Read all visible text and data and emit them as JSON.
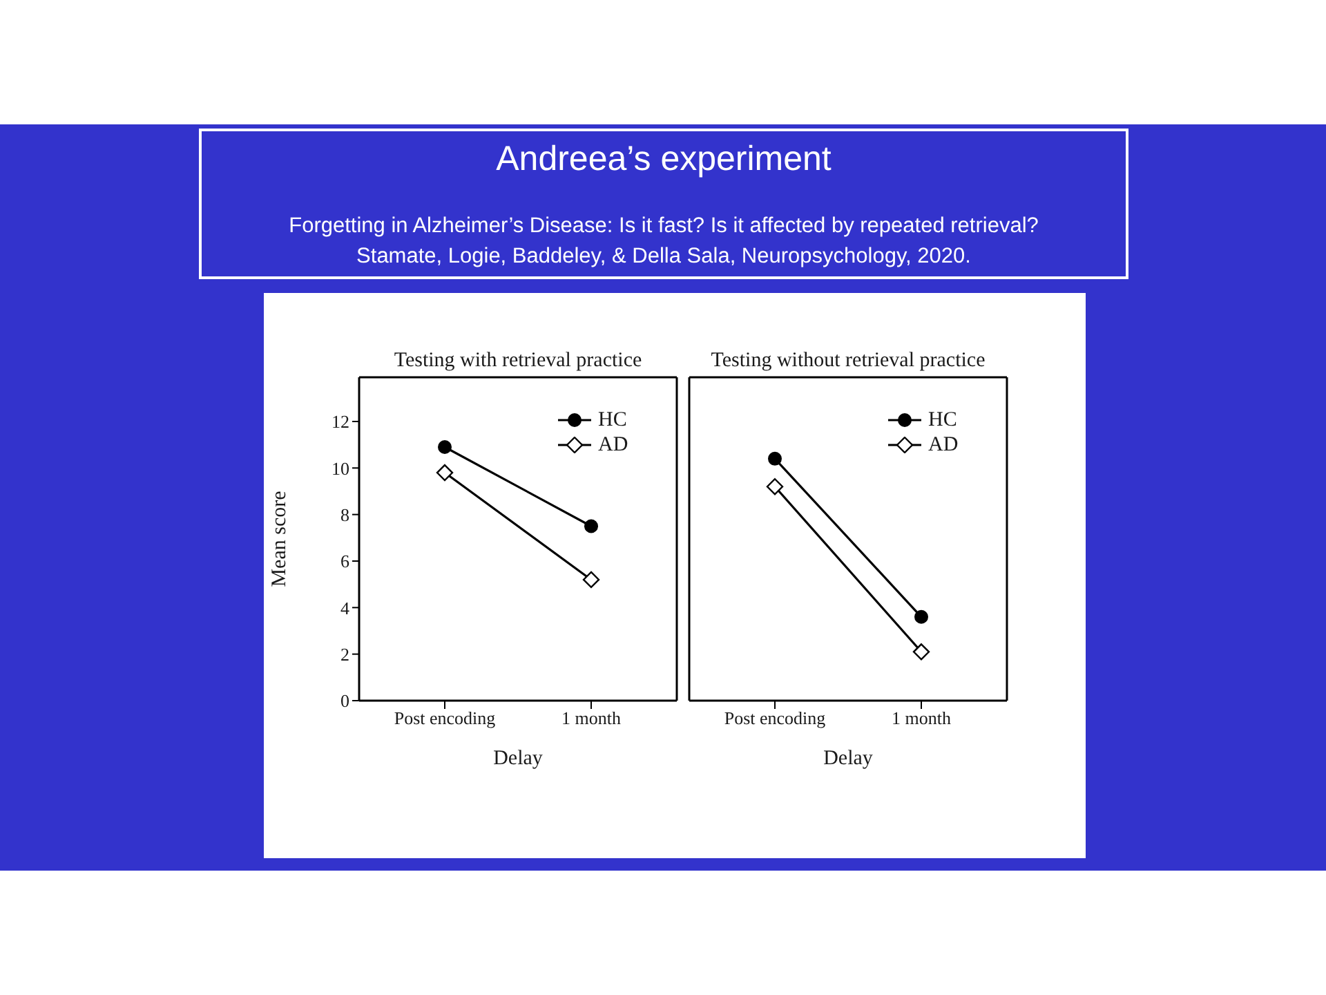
{
  "chart_data": [
    {
      "type": "other",
      "title": "Andreea’s experiment",
      "subtitle": "Forgetting in Alzheimer’s Disease: Is it fast? Is it affected by repeated retrieval?",
      "annotations": [
        "Stamate, Logie, Baddeley, & Della Sala, Neuropsychology, 2020."
      ]
    },
    {
      "type": "line",
      "title": "Testing with retrieval practice",
      "xlabel": "Delay",
      "ylabel": "Mean score",
      "categories": [
        "Post encoding",
        "1 month"
      ],
      "series": [
        {
          "name": "HC",
          "color": "#000000",
          "marker": "circle",
          "values": [
            10.9,
            7.5
          ]
        },
        {
          "name": "AD",
          "color": "#000000",
          "marker": "diamond",
          "values": [
            9.8,
            5.2
          ]
        }
      ],
      "ylim": [
        0,
        13.9
      ],
      "yticks": [
        0,
        2,
        4,
        6,
        8,
        10,
        12
      ],
      "legend": "top right",
      "line_style": "solid"
    },
    {
      "type": "line",
      "title": "Testing without retrieval practice",
      "xlabel": "Delay",
      "categories": [
        "Post encoding",
        "1 month"
      ],
      "series": [
        {
          "name": "HC",
          "color": "#000000",
          "marker": "circle",
          "values": [
            10.4,
            3.6
          ]
        },
        {
          "name": "AD",
          "color": "#000000",
          "marker": "diamond",
          "values": [
            9.2,
            2.1
          ]
        }
      ],
      "ylim": [
        0,
        13.9
      ],
      "tick_labels": "x",
      "legend": "top right",
      "line_style": "solid"
    }
  ]
}
